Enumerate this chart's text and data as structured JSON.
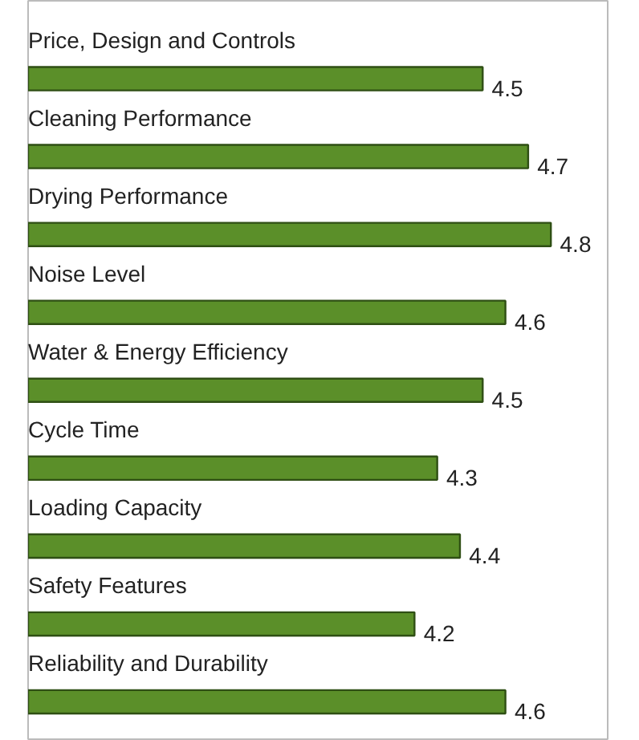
{
  "chart_data": {
    "type": "bar",
    "orientation": "horizontal",
    "categories": [
      "Price, Design and Controls",
      "Cleaning Performance",
      "Drying Performance",
      "Noise Level",
      "Water & Energy Efficiency",
      "Cycle Time",
      "Loading Capacity",
      "Safety Features",
      "Reliability and Durability"
    ],
    "values": [
      4.5,
      4.7,
      4.8,
      4.6,
      4.5,
      4.3,
      4.4,
      4.2,
      4.6
    ],
    "color": "#5b8f29",
    "xlim": [
      2.5,
      5.05
    ],
    "data_labels": true,
    "grid": false,
    "tick_labels": false
  }
}
